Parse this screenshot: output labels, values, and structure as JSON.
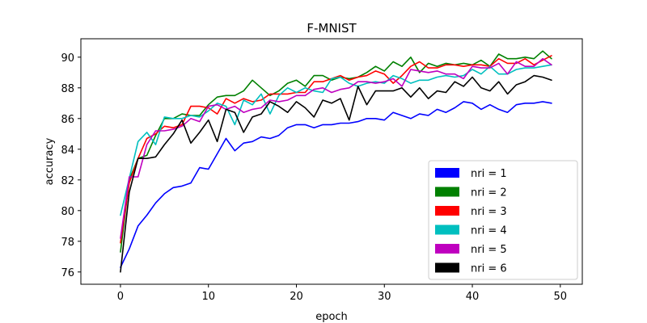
{
  "chart_data": {
    "type": "line",
    "title": "F-MNIST",
    "xlabel": "epoch",
    "ylabel": "accuracy",
    "xlim": [
      -4.5,
      52.5
    ],
    "ylim": [
      75.2,
      91.2
    ],
    "xticks": [
      0,
      10,
      20,
      30,
      40,
      50
    ],
    "yticks": [
      76,
      78,
      80,
      82,
      84,
      86,
      88,
      90
    ],
    "legend_position": "lower-right",
    "x": [
      0,
      1,
      2,
      3,
      4,
      5,
      6,
      7,
      8,
      9,
      10,
      11,
      12,
      13,
      14,
      15,
      16,
      17,
      18,
      19,
      20,
      21,
      22,
      23,
      24,
      25,
      26,
      27,
      28,
      29,
      30,
      31,
      32,
      33,
      34,
      35,
      36,
      37,
      38,
      39,
      40,
      41,
      42,
      43,
      44,
      45,
      46,
      47,
      48,
      49
    ],
    "series": [
      {
        "name": "nri = 1",
        "color": "#0000ff",
        "values": [
          76.3,
          77.5,
          79.0,
          79.7,
          80.5,
          81.1,
          81.5,
          81.6,
          81.8,
          82.8,
          82.7,
          83.7,
          84.7,
          83.9,
          84.4,
          84.5,
          84.8,
          84.7,
          84.9,
          85.4,
          85.6,
          85.6,
          85.4,
          85.6,
          85.6,
          85.7,
          85.7,
          85.8,
          86.0,
          86.0,
          85.9,
          86.4,
          86.2,
          86.0,
          86.3,
          86.2,
          86.6,
          86.4,
          86.7,
          87.1,
          87.0,
          86.6,
          86.9,
          86.6,
          86.4,
          86.9,
          87.0,
          87.0,
          87.1,
          87.0
        ]
      },
      {
        "name": "nri = 2",
        "color": "#008000",
        "values": [
          77.3,
          82.0,
          83.4,
          83.6,
          84.9,
          86.0,
          86.0,
          86.3,
          86.2,
          86.2,
          86.9,
          87.4,
          87.5,
          87.5,
          87.8,
          88.5,
          88.0,
          87.5,
          87.8,
          88.3,
          88.5,
          88.1,
          88.8,
          88.8,
          88.5,
          88.7,
          88.6,
          88.7,
          89.0,
          89.4,
          89.1,
          89.7,
          89.4,
          90.0,
          89.0,
          89.6,
          89.4,
          89.6,
          89.5,
          89.6,
          89.5,
          89.8,
          89.4,
          90.2,
          89.9,
          89.9,
          90.0,
          89.9,
          90.4,
          89.9
        ]
      },
      {
        "name": "nri = 3",
        "color": "#ff0000",
        "values": [
          77.9,
          81.8,
          83.4,
          84.7,
          85.0,
          85.5,
          85.4,
          85.6,
          86.8,
          86.8,
          86.7,
          86.3,
          87.3,
          87.0,
          87.3,
          87.1,
          87.2,
          87.6,
          87.6,
          87.6,
          87.7,
          87.7,
          88.4,
          88.4,
          88.6,
          88.8,
          88.5,
          88.7,
          88.8,
          89.1,
          88.9,
          88.3,
          88.8,
          89.4,
          89.7,
          89.3,
          89.3,
          89.5,
          89.5,
          89.4,
          89.5,
          89.5,
          89.4,
          89.9,
          89.6,
          89.6,
          89.9,
          89.5,
          89.8,
          90.1
        ]
      },
      {
        "name": "nri = 4",
        "color": "#00bfbf",
        "values": [
          79.7,
          82.1,
          84.5,
          85.1,
          84.3,
          86.1,
          86.0,
          86.0,
          86.2,
          86.1,
          86.5,
          87.0,
          86.8,
          85.6,
          87.2,
          86.9,
          87.6,
          86.3,
          87.5,
          88.0,
          87.7,
          88.0,
          87.8,
          87.7,
          88.6,
          88.7,
          88.3,
          88.1,
          88.3,
          88.4,
          88.3,
          88.8,
          88.6,
          88.3,
          88.5,
          88.5,
          88.7,
          88.8,
          88.7,
          88.8,
          89.2,
          88.9,
          89.4,
          88.9,
          88.9,
          89.2,
          89.3,
          89.3,
          89.4,
          89.5
        ]
      },
      {
        "name": "nri = 5",
        "color": "#bf00bf",
        "values": [
          78.2,
          82.2,
          82.2,
          84.3,
          85.2,
          85.2,
          85.3,
          85.5,
          86.0,
          85.8,
          86.8,
          86.9,
          86.6,
          86.8,
          86.4,
          86.6,
          86.7,
          87.2,
          87.1,
          87.2,
          87.5,
          87.5,
          87.9,
          88.0,
          87.7,
          87.9,
          88.0,
          88.4,
          88.4,
          88.3,
          88.4,
          88.6,
          88.1,
          89.2,
          89.1,
          89.0,
          89.1,
          88.9,
          88.9,
          88.6,
          89.4,
          89.3,
          89.3,
          89.6,
          88.9,
          89.7,
          89.4,
          89.4,
          89.9,
          89.5
        ]
      },
      {
        "name": "nri = 6",
        "color": "#000000",
        "values": [
          76.0,
          81.2,
          83.4,
          83.4,
          83.5,
          84.3,
          85.0,
          85.9,
          84.4,
          85.1,
          85.9,
          84.5,
          86.6,
          86.4,
          85.1,
          86.1,
          86.3,
          87.1,
          86.8,
          86.4,
          87.1,
          86.7,
          86.1,
          87.2,
          87.0,
          87.3,
          85.9,
          88.1,
          86.9,
          87.8,
          87.8,
          87.8,
          88.0,
          87.4,
          88.0,
          87.3,
          87.8,
          87.7,
          88.4,
          88.1,
          88.7,
          88.0,
          87.8,
          88.4,
          87.6,
          88.2,
          88.4,
          88.8,
          88.7,
          88.5
        ]
      }
    ]
  }
}
